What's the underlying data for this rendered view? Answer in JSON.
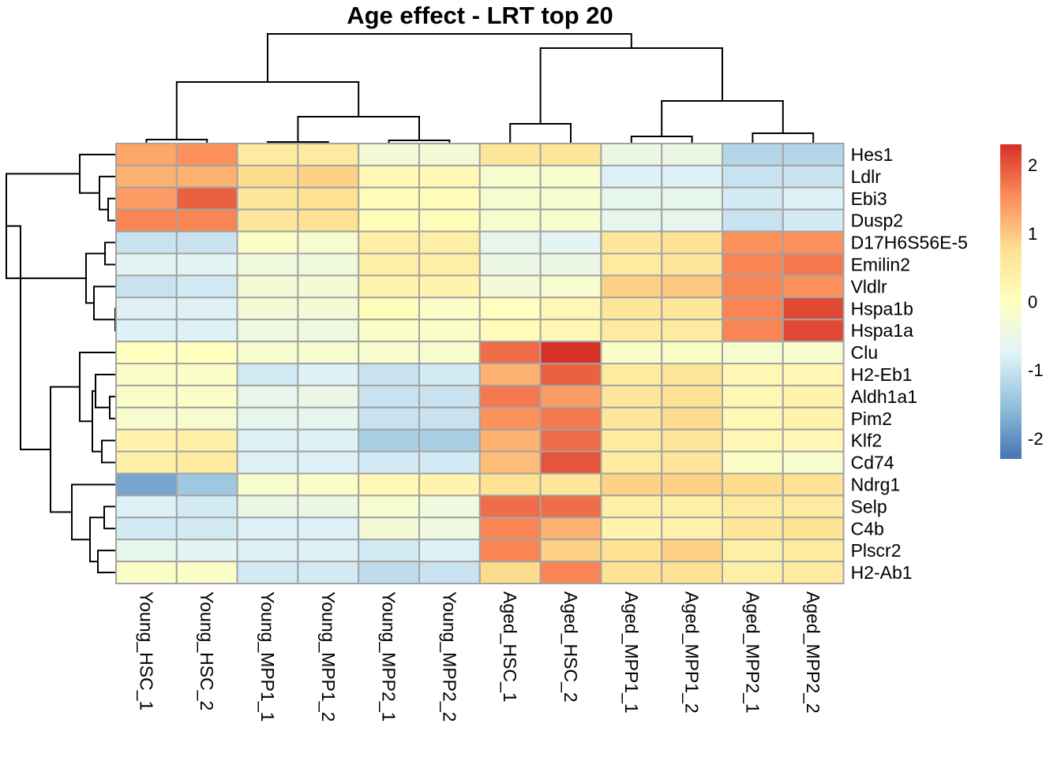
{
  "chart_data": {
    "type": "heatmap",
    "title": "Age effect - LRT top 20",
    "columns": [
      "Young_HSC_1",
      "Young_HSC_2",
      "Young_MPP1_1",
      "Young_MPP1_2",
      "Young_MPP2_1",
      "Young_MPP2_2",
      "Aged_HSC_1",
      "Aged_HSC_2",
      "Aged_MPP1_1",
      "Aged_MPP1_2",
      "Aged_MPP2_1",
      "Aged_MPP2_2"
    ],
    "rows": [
      "Hes1",
      "Ldlr",
      "Ebi3",
      "Dusp2",
      "D17H6S56E-5",
      "Emilin2",
      "Vldlr",
      "Hspa1b",
      "Hspa1a",
      "Clu",
      "H2-Eb1",
      "Aldh1a1",
      "Pim2",
      "Klf2",
      "Cd74",
      "Ndrg1",
      "Selp",
      "C4b",
      "Plscr2",
      "H2-Ab1"
    ],
    "values": [
      [
        1.3,
        1.5,
        0.5,
        0.5,
        -0.3,
        -0.3,
        0.6,
        0.6,
        -0.5,
        -0.5,
        -1.2,
        -1.2
      ],
      [
        1.2,
        1.2,
        0.8,
        0.9,
        0.2,
        0.2,
        -0.2,
        -0.2,
        -0.8,
        -0.8,
        -1.0,
        -1.0
      ],
      [
        1.4,
        1.9,
        0.6,
        0.7,
        0.1,
        0.1,
        -0.2,
        -0.2,
        -0.6,
        -0.6,
        -0.9,
        -0.8
      ],
      [
        1.6,
        1.6,
        0.6,
        0.7,
        0.1,
        0.1,
        -0.2,
        -0.2,
        -0.6,
        -0.6,
        -1.0,
        -0.9
      ],
      [
        -1.0,
        -1.0,
        -0.1,
        -0.2,
        0.4,
        0.4,
        -0.6,
        -0.7,
        0.6,
        0.7,
        1.5,
        1.5
      ],
      [
        -0.7,
        -0.7,
        -0.4,
        -0.4,
        0.4,
        0.4,
        -0.5,
        -0.5,
        0.5,
        0.6,
        1.6,
        1.7
      ],
      [
        -1.0,
        -0.9,
        -0.3,
        -0.3,
        0.3,
        0.3,
        -0.3,
        -0.2,
        0.9,
        1.0,
        1.6,
        1.5
      ],
      [
        -0.8,
        -0.8,
        -0.3,
        -0.3,
        0.1,
        -0.1,
        0.0,
        0.2,
        0.6,
        0.6,
        1.6,
        2.1
      ],
      [
        -0.8,
        -0.8,
        -0.4,
        -0.4,
        -0.1,
        -0.1,
        0.1,
        0.2,
        0.5,
        0.5,
        1.6,
        2.1
      ],
      [
        0.0,
        0.0,
        -0.2,
        -0.2,
        -0.2,
        -0.2,
        1.8,
        2.3,
        -0.1,
        -0.1,
        -0.2,
        -0.2
      ],
      [
        -0.1,
        -0.1,
        -0.9,
        -0.8,
        -1.0,
        -0.9,
        1.2,
        1.9,
        0.5,
        0.6,
        0.2,
        0.2
      ],
      [
        -0.1,
        -0.1,
        -0.6,
        -0.5,
        -1.0,
        -1.0,
        1.7,
        1.4,
        0.6,
        0.7,
        0.2,
        0.3
      ],
      [
        -0.2,
        -0.2,
        -0.6,
        -0.6,
        -1.0,
        -1.0,
        1.5,
        1.7,
        0.6,
        0.8,
        0.2,
        0.3
      ],
      [
        0.3,
        0.4,
        -0.8,
        -0.8,
        -1.3,
        -1.3,
        1.2,
        1.8,
        0.5,
        0.6,
        0.2,
        0.2
      ],
      [
        0.4,
        0.5,
        -0.8,
        -0.8,
        -0.9,
        -0.9,
        1.1,
        2.0,
        0.5,
        0.6,
        -0.1,
        -0.2
      ],
      [
        -1.8,
        -1.4,
        -0.2,
        -0.1,
        0.2,
        0.3,
        0.7,
        0.6,
        0.9,
        0.9,
        0.8,
        0.7
      ],
      [
        -0.8,
        -0.9,
        -0.5,
        -0.5,
        -0.2,
        -0.4,
        1.8,
        1.8,
        0.4,
        0.4,
        0.5,
        0.5
      ],
      [
        -0.9,
        -0.9,
        -0.8,
        -0.8,
        -0.3,
        -0.4,
        1.6,
        1.2,
        0.3,
        0.3,
        0.6,
        0.7
      ],
      [
        -0.6,
        -0.7,
        -0.8,
        -0.8,
        -0.9,
        -0.8,
        1.6,
        0.9,
        0.7,
        0.9,
        0.4,
        0.5
      ],
      [
        -0.1,
        -0.1,
        -0.9,
        -0.9,
        -1.1,
        -1.0,
        0.8,
        1.6,
        0.7,
        0.7,
        0.4,
        0.5
      ]
    ],
    "color_scale": {
      "min": -2.3,
      "max": 2.3,
      "stops": [
        "#4575B4",
        "#91BFDB",
        "#E0F3F8",
        "#FFFFBF",
        "#FEE090",
        "#FC8D59",
        "#D73027"
      ],
      "ticks": [
        -2,
        -1,
        0,
        1,
        2
      ],
      "tick_labels": [
        "-2",
        "-1",
        "0",
        "1",
        "2"
      ]
    },
    "legend": "right",
    "column_dendrogram": true,
    "row_dendrogram": true
  }
}
